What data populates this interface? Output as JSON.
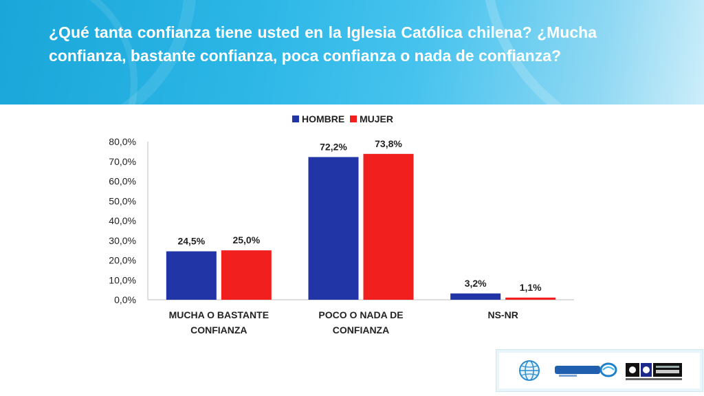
{
  "header": {
    "title": "¿Qué tanta confianza tiene usted en la Iglesia Católica chilena? ¿Mucha confianza, bastante confianza, poca confianza o nada de confianza?"
  },
  "chart_data": {
    "type": "bar",
    "categories": [
      "MUCHA O BASTANTE CONFIANZA",
      "POCO O NADA DE CONFIANZA",
      "NS-NR"
    ],
    "series": [
      {
        "name": "HOMBRE",
        "values": [
          24.5,
          72.2,
          3.2
        ],
        "labels": [
          "24,5%",
          "72,2%",
          "3,2%"
        ],
        "color": "#2135a6"
      },
      {
        "name": "MUJER",
        "values": [
          25.0,
          73.8,
          1.1
        ],
        "labels": [
          "25,0%",
          "73,8%",
          "1,1%"
        ],
        "color": "#f21f1f"
      }
    ],
    "y_ticks": [
      "0,0%",
      "10,0%",
      "20,0%",
      "30,0%",
      "40,0%",
      "50,0%",
      "60,0%",
      "70,0%",
      "80,0%"
    ],
    "ylim": [
      0,
      80
    ],
    "legend_position": "top",
    "grid": false
  },
  "footer": {
    "logos": [
      "globe-logo",
      "radio-cooperativa-logo",
      "universidad-central-logo"
    ]
  }
}
